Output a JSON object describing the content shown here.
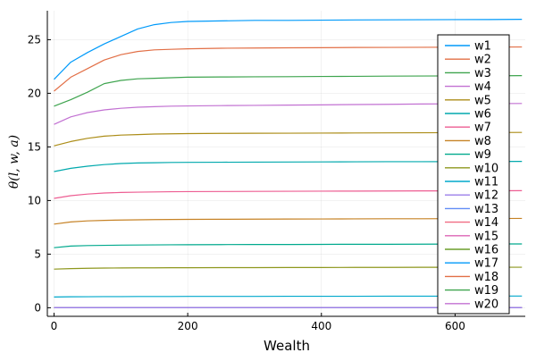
{
  "chart_data": {
    "type": "line",
    "xlabel": "Wealth",
    "ylabel": "θ(l, w, a)",
    "xlim": [
      -10,
      705
    ],
    "ylim": [
      -0.8,
      27.7
    ],
    "xticks": [
      0,
      200,
      400,
      600
    ],
    "yticks": [
      0,
      5,
      10,
      15,
      20,
      25
    ],
    "grid": true,
    "legend_position": "right",
    "x": [
      0,
      25,
      50,
      75,
      100,
      125,
      150,
      175,
      200,
      250,
      300,
      350,
      400,
      450,
      500,
      550,
      600,
      650,
      700
    ],
    "series": [
      {
        "name": "w1",
        "color": "#009AFA",
        "values": [
          21.3,
          22.9,
          23.8,
          24.6,
          25.3,
          26.0,
          26.4,
          26.6,
          26.7,
          26.75,
          26.8,
          26.8,
          26.82,
          26.84,
          26.85,
          26.86,
          26.87,
          26.88,
          26.9
        ]
      },
      {
        "name": "w2",
        "color": "#E26F46",
        "values": [
          20.2,
          21.5,
          22.3,
          23.1,
          23.6,
          23.9,
          24.05,
          24.1,
          24.15,
          24.2,
          24.22,
          24.24,
          24.25,
          24.27,
          24.28,
          24.29,
          24.3,
          24.31,
          24.32
        ]
      },
      {
        "name": "w3",
        "color": "#3EA44E",
        "values": [
          18.8,
          19.4,
          20.1,
          20.9,
          21.2,
          21.35,
          21.4,
          21.45,
          21.5,
          21.52,
          21.54,
          21.55,
          21.57,
          21.58,
          21.6,
          21.61,
          21.62,
          21.63,
          21.65
        ]
      },
      {
        "name": "w4",
        "color": "#C271D2",
        "values": [
          17.1,
          17.8,
          18.2,
          18.45,
          18.6,
          18.7,
          18.75,
          18.8,
          18.82,
          18.85,
          18.87,
          18.9,
          18.92,
          18.95,
          18.97,
          19.0,
          19.02,
          19.04,
          19.05
        ]
      },
      {
        "name": "w5",
        "color": "#AC8D18",
        "values": [
          15.1,
          15.5,
          15.8,
          16.0,
          16.1,
          16.15,
          16.2,
          16.22,
          16.24,
          16.26,
          16.27,
          16.28,
          16.29,
          16.3,
          16.31,
          16.32,
          16.33,
          16.34,
          16.35
        ]
      },
      {
        "name": "w6",
        "color": "#00A9AD",
        "values": [
          12.7,
          13.0,
          13.2,
          13.35,
          13.45,
          13.5,
          13.52,
          13.55,
          13.56,
          13.57,
          13.58,
          13.59,
          13.6,
          13.61,
          13.62,
          13.62,
          13.63,
          13.64,
          13.65
        ]
      },
      {
        "name": "w7",
        "color": "#ED5D92",
        "values": [
          10.2,
          10.45,
          10.6,
          10.7,
          10.75,
          10.78,
          10.8,
          10.82,
          10.83,
          10.84,
          10.85,
          10.86,
          10.87,
          10.88,
          10.89,
          10.9,
          10.9,
          10.91,
          10.92
        ]
      },
      {
        "name": "w8",
        "color": "#C68225",
        "values": [
          7.8,
          8.0,
          8.1,
          8.15,
          8.18,
          8.2,
          8.22,
          8.23,
          8.24,
          8.25,
          8.26,
          8.27,
          8.28,
          8.29,
          8.3,
          8.3,
          8.31,
          8.32,
          8.33
        ]
      },
      {
        "name": "w9",
        "color": "#00A98D",
        "values": [
          5.6,
          5.75,
          5.8,
          5.82,
          5.84,
          5.85,
          5.86,
          5.87,
          5.88,
          5.89,
          5.9,
          5.9,
          5.91,
          5.92,
          5.92,
          5.93,
          5.94,
          5.95,
          5.95
        ]
      },
      {
        "name": "w10",
        "color": "#8E971D",
        "values": [
          3.6,
          3.65,
          3.68,
          3.7,
          3.71,
          3.72,
          3.72,
          3.73,
          3.73,
          3.74,
          3.74,
          3.75,
          3.75,
          3.76,
          3.76,
          3.77,
          3.77,
          3.78,
          3.78
        ]
      },
      {
        "name": "w11",
        "color": "#00A8CB",
        "values": [
          1.0,
          1.02,
          1.03,
          1.04,
          1.04,
          1.05,
          1.05,
          1.05,
          1.06,
          1.06,
          1.06,
          1.07,
          1.07,
          1.07,
          1.08,
          1.08,
          1.08,
          1.09,
          1.09
        ]
      },
      {
        "name": "w12",
        "color": "#9B7FE9",
        "values": [
          0,
          0,
          0,
          0,
          0,
          0,
          0,
          0,
          0,
          0,
          0,
          0,
          0,
          0,
          0,
          0,
          0,
          0,
          0
        ]
      },
      {
        "name": "w13",
        "color": "#618DF6",
        "values": [
          0,
          0,
          0,
          0,
          0,
          0,
          0,
          0,
          0,
          0,
          0,
          0,
          0,
          0,
          0,
          0,
          0,
          0,
          0
        ]
      },
      {
        "name": "w14",
        "color": "#F16C82",
        "values": [
          0,
          0,
          0,
          0,
          0,
          0,
          0,
          0,
          0,
          0,
          0,
          0,
          0,
          0,
          0,
          0,
          0,
          0,
          0
        ]
      },
      {
        "name": "w15",
        "color": "#DD64B5",
        "values": [
          0,
          0,
          0,
          0,
          0,
          0,
          0,
          0,
          0,
          0,
          0,
          0,
          0,
          0,
          0,
          0,
          0,
          0,
          0
        ]
      },
      {
        "name": "w16",
        "color": "#6B9D2B",
        "values": [
          0,
          0,
          0,
          0,
          0,
          0,
          0,
          0,
          0,
          0,
          0,
          0,
          0,
          0,
          0,
          0,
          0,
          0,
          0
        ]
      },
      {
        "name": "w17",
        "color": "#009AFA",
        "values": [
          0,
          0,
          0,
          0,
          0,
          0,
          0,
          0,
          0,
          0,
          0,
          0,
          0,
          0,
          0,
          0,
          0,
          0,
          0
        ]
      },
      {
        "name": "w18",
        "color": "#E26F46",
        "values": [
          0,
          0,
          0,
          0,
          0,
          0,
          0,
          0,
          0,
          0,
          0,
          0,
          0,
          0,
          0,
          0,
          0,
          0,
          0
        ]
      },
      {
        "name": "w19",
        "color": "#3EA44E",
        "values": [
          0,
          0,
          0,
          0,
          0,
          0,
          0,
          0,
          0,
          0,
          0,
          0,
          0,
          0,
          0,
          0,
          0,
          0,
          0
        ]
      },
      {
        "name": "w20",
        "color": "#C271D2",
        "values": [
          0,
          0,
          0,
          0,
          0,
          0,
          0,
          0,
          0,
          0,
          0,
          0,
          0,
          0,
          0,
          0,
          0,
          0,
          0
        ]
      }
    ]
  }
}
